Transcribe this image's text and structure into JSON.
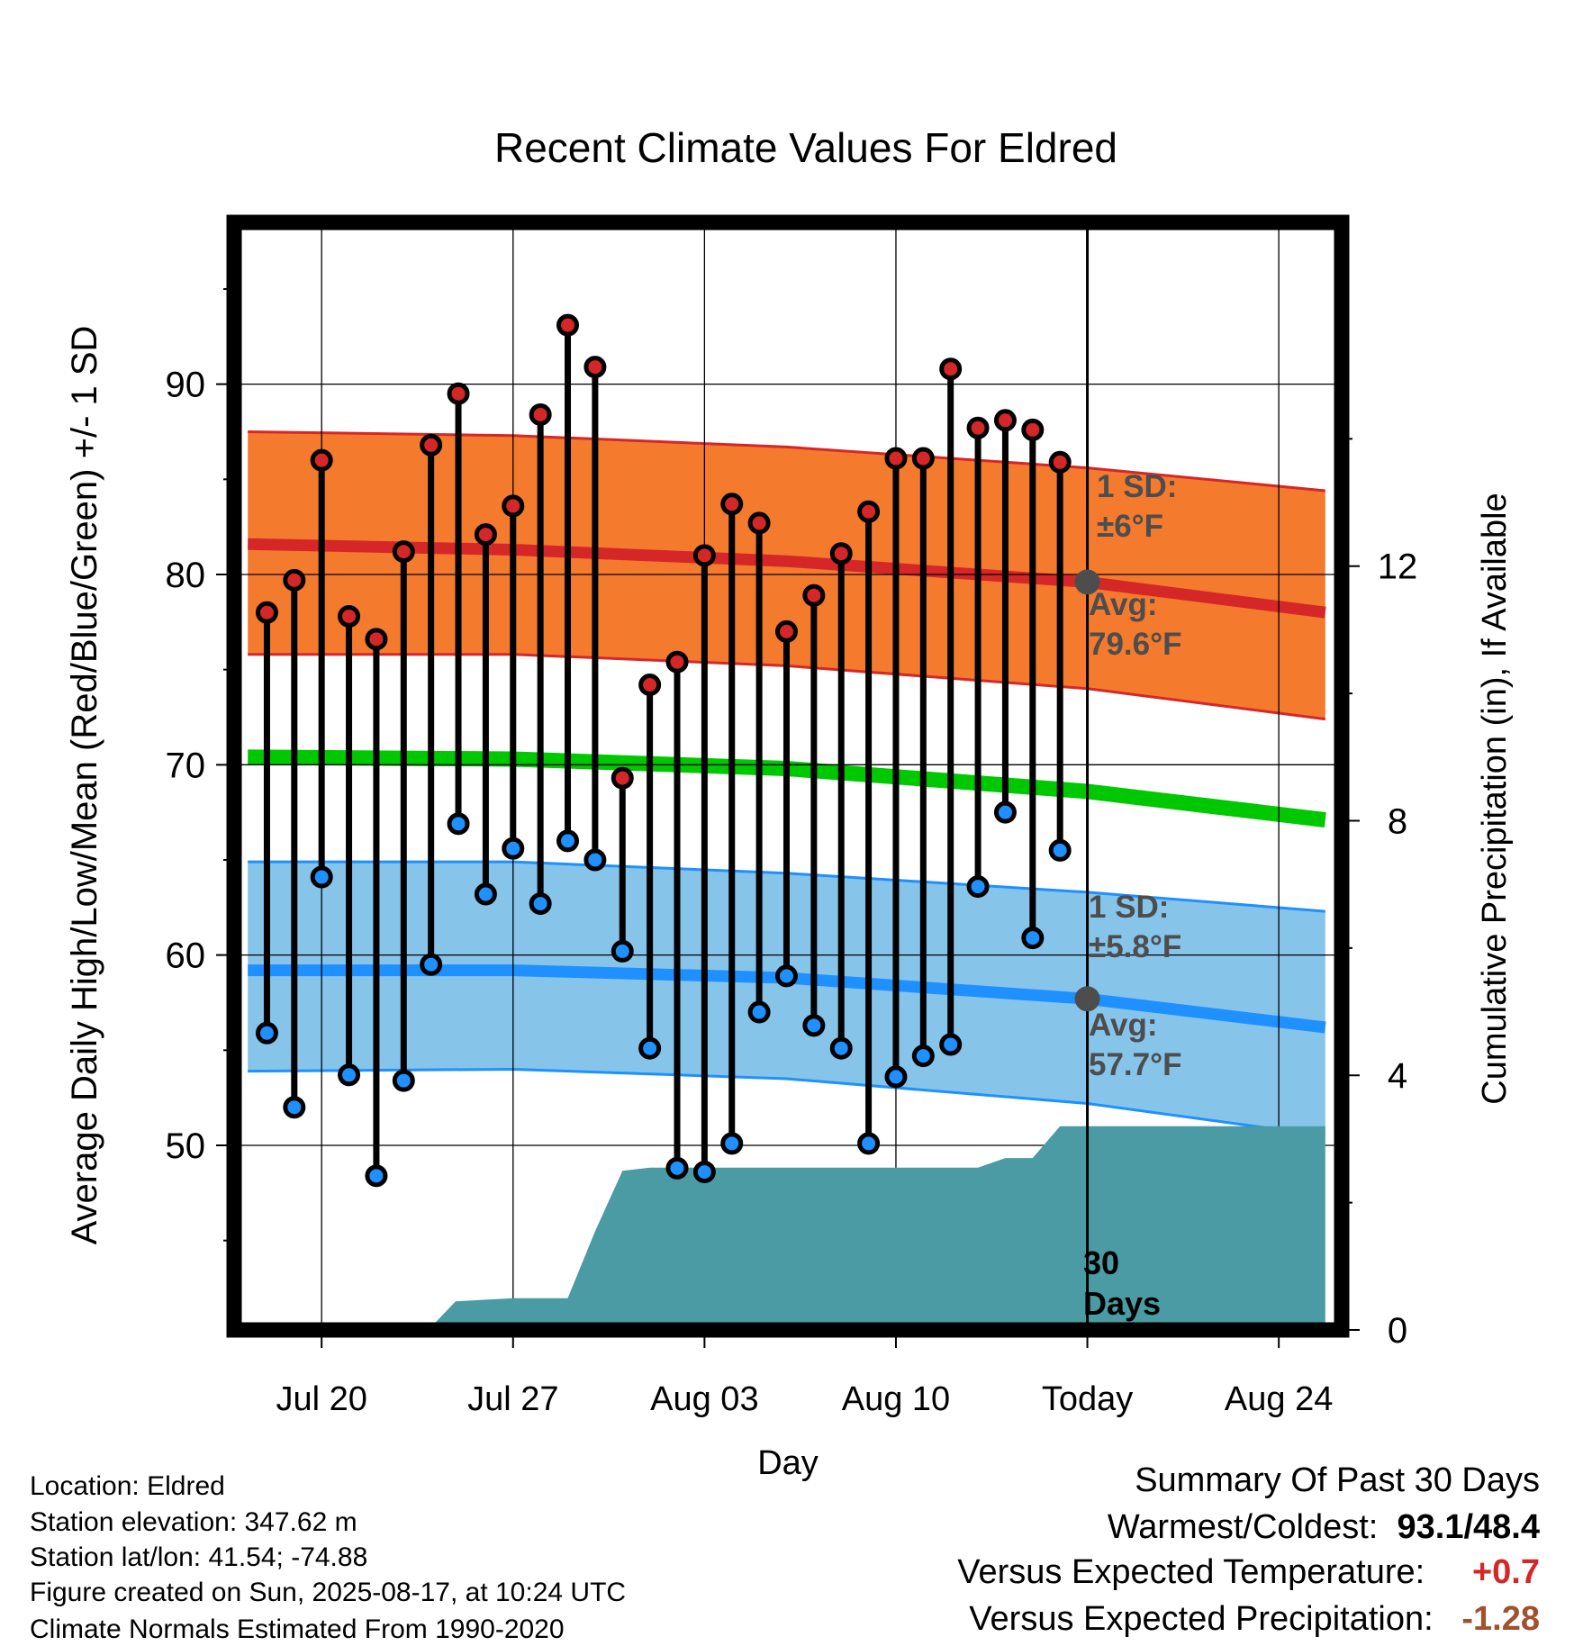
{
  "chart_data": {
    "type": "line",
    "title": "Recent Climate Values For Eldred",
    "xlabel": "Day",
    "ylabel": "Average Daily High/Low/Mean (Red/Blue/Green) +/- 1 SD",
    "ylabel_right": "Cumulative Precipitation (in), If Available",
    "xlim": [
      -3.2,
      37.3
    ],
    "ylim": [
      40.3,
      98.5
    ],
    "ylim_right": [
      0,
      17.4
    ],
    "x_ticks": [
      {
        "x": 0,
        "label": "Jul 20"
      },
      {
        "x": 7,
        "label": "Jul 27"
      },
      {
        "x": 14,
        "label": "Aug 03"
      },
      {
        "x": 21,
        "label": "Aug 10"
      },
      {
        "x": 28,
        "label": "Today"
      },
      {
        "x": 35,
        "label": "Aug 24"
      }
    ],
    "y_ticks": [
      50,
      60,
      70,
      80,
      90
    ],
    "y_ticks_right": [
      0,
      4,
      8,
      12
    ],
    "grid": true,
    "today_x": 28,
    "series": [
      {
        "name": "High",
        "color": "#d62728",
        "x": [
          -2,
          -1,
          0,
          1,
          2,
          3,
          4,
          5,
          6,
          7,
          8,
          9,
          10,
          11,
          12,
          13,
          14,
          15,
          16,
          17,
          18,
          19,
          20,
          21,
          22,
          23,
          24,
          25,
          26,
          27
        ],
        "values": [
          78.0,
          79.7,
          86.0,
          77.8,
          76.6,
          81.2,
          86.8,
          89.5,
          82.1,
          83.6,
          88.4,
          93.1,
          90.9,
          69.3,
          74.2,
          75.4,
          81.0,
          83.7,
          82.7,
          77.0,
          78.9,
          81.1,
          83.3,
          86.1,
          86.1,
          90.8,
          87.7,
          88.1,
          87.6,
          85.9
        ]
      },
      {
        "name": "Low",
        "color": "#1e90ff",
        "x": [
          -2,
          -1,
          0,
          1,
          2,
          3,
          4,
          5,
          6,
          7,
          8,
          9,
          10,
          11,
          12,
          13,
          14,
          15,
          16,
          17,
          18,
          19,
          20,
          21,
          22,
          23,
          24,
          25,
          26,
          27
        ],
        "values": [
          55.9,
          52.0,
          64.1,
          53.7,
          48.4,
          53.4,
          59.5,
          66.9,
          63.2,
          65.6,
          62.7,
          66.0,
          65.0,
          60.2,
          55.1,
          48.8,
          48.6,
          50.1,
          57.0,
          58.9,
          56.3,
          55.1,
          50.1,
          53.6,
          54.7,
          55.3,
          63.6,
          67.5,
          60.9,
          65.5
        ]
      }
    ],
    "normals": {
      "x": [
        -2.7,
        7,
        17,
        28,
        36.7
      ],
      "high_avg": [
        81.6,
        81.3,
        80.7,
        79.6,
        78.0
      ],
      "high_upper": [
        87.5,
        87.3,
        86.7,
        85.6,
        84.4
      ],
      "high_lower": [
        75.8,
        75.8,
        75.2,
        74.0,
        72.4
      ],
      "mean_avg": [
        70.4,
        70.3,
        69.8,
        68.6,
        67.1
      ],
      "low_avg": [
        59.2,
        59.2,
        58.8,
        57.7,
        56.2
      ],
      "low_upper": [
        64.9,
        64.9,
        64.3,
        63.3,
        62.3
      ],
      "low_lower": [
        53.9,
        54.0,
        53.5,
        52.2,
        50.5
      ]
    },
    "precipitation": {
      "x": [
        -2.7,
        1,
        3.9,
        4.9,
        7,
        9,
        10,
        11,
        12,
        24,
        25,
        26,
        27,
        36.7
      ],
      "values": [
        0,
        0,
        0,
        0.45,
        0.5,
        0.5,
        1.55,
        2.5,
        2.55,
        2.55,
        2.7,
        2.7,
        3.2,
        3.2
      ]
    },
    "annotations": {
      "high_sd_label": "1 SD:",
      "high_sd_value": "±6°F",
      "high_avg_label": "Avg:",
      "high_avg_value": "79.6°F",
      "low_sd_label": "1 SD:",
      "low_sd_value": "±5.8°F",
      "low_avg_label": "Avg:",
      "low_avg_value": "57.7°F",
      "days_number": "30",
      "days_word": "Days"
    },
    "colors": {
      "high": "#d62728",
      "high_band": "#f47a2e",
      "mean": "#00c800",
      "low": "#1e90ff",
      "low_band": "#86c4ea",
      "precip": "#4a9ba3",
      "annotation": "#4d4d4d"
    }
  },
  "info": {
    "location": "Location: Eldred",
    "elevation": "Station elevation: 347.62 m",
    "latlon": "Station lat/lon: 41.54; -74.88",
    "created": "Figure created on Sun, 2025-08-17, at 10:24 UTC",
    "normals": "Climate Normals Estimated From 1990-2020"
  },
  "summary": {
    "title": "Summary Of Past 30 Days",
    "warm_cold_label": "Warmest/Coldest:",
    "warm_value": "93.1",
    "cold_value": "48.4",
    "temp_label": "Versus Expected Temperature:",
    "temp_value": "+0.7",
    "temp_color": "#d62728",
    "precip_label": "Versus Expected Precipitation:",
    "precip_value": "-1.28",
    "precip_color": "#a0522d"
  }
}
